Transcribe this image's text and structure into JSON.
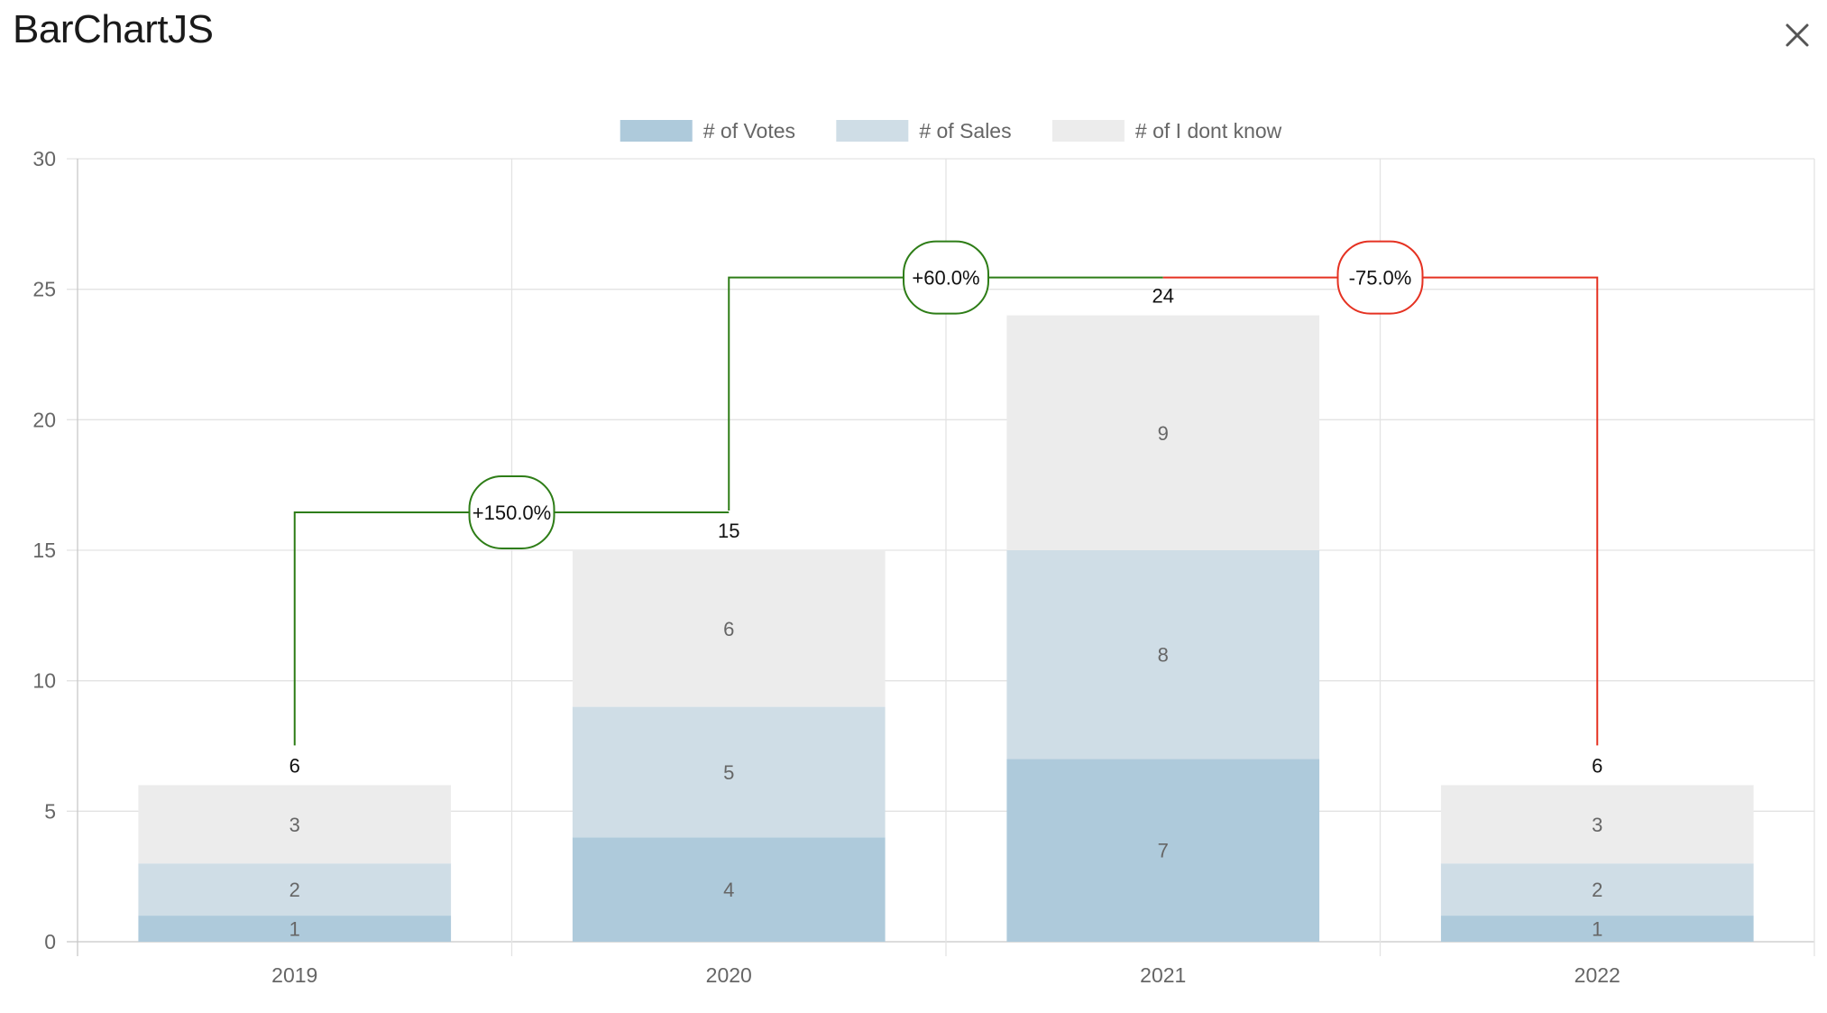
{
  "app": {
    "title": "BarChartJS",
    "close_icon": "close-icon"
  },
  "chart_data": {
    "type": "bar",
    "stacked": true,
    "categories": [
      "2019",
      "2020",
      "2021",
      "2022"
    ],
    "series": [
      {
        "name": "# of Votes",
        "values": [
          1,
          4,
          7,
          1
        ],
        "color": "#aecadb"
      },
      {
        "name": "# of Sales",
        "values": [
          2,
          5,
          8,
          2
        ],
        "color": "#cfdde6"
      },
      {
        "name": "# of I dont know",
        "values": [
          3,
          6,
          9,
          3
        ],
        "color": "#ececec"
      }
    ],
    "totals": [
      6,
      15,
      24,
      6
    ],
    "ylim": [
      0,
      30
    ],
    "yticks": [
      0,
      5,
      10,
      15,
      20,
      25,
      30
    ],
    "grid": true,
    "legend_position": "top",
    "changes": [
      {
        "from": 0,
        "to": 1,
        "label": "+150.0%",
        "color": "#2e7d17"
      },
      {
        "from": 1,
        "to": 2,
        "label": "+60.0%",
        "color": "#2e7d17"
      },
      {
        "from": 2,
        "to": 3,
        "label": "-75.0%",
        "color": "#e53222"
      }
    ],
    "title": "",
    "xlabel": "",
    "ylabel": ""
  }
}
